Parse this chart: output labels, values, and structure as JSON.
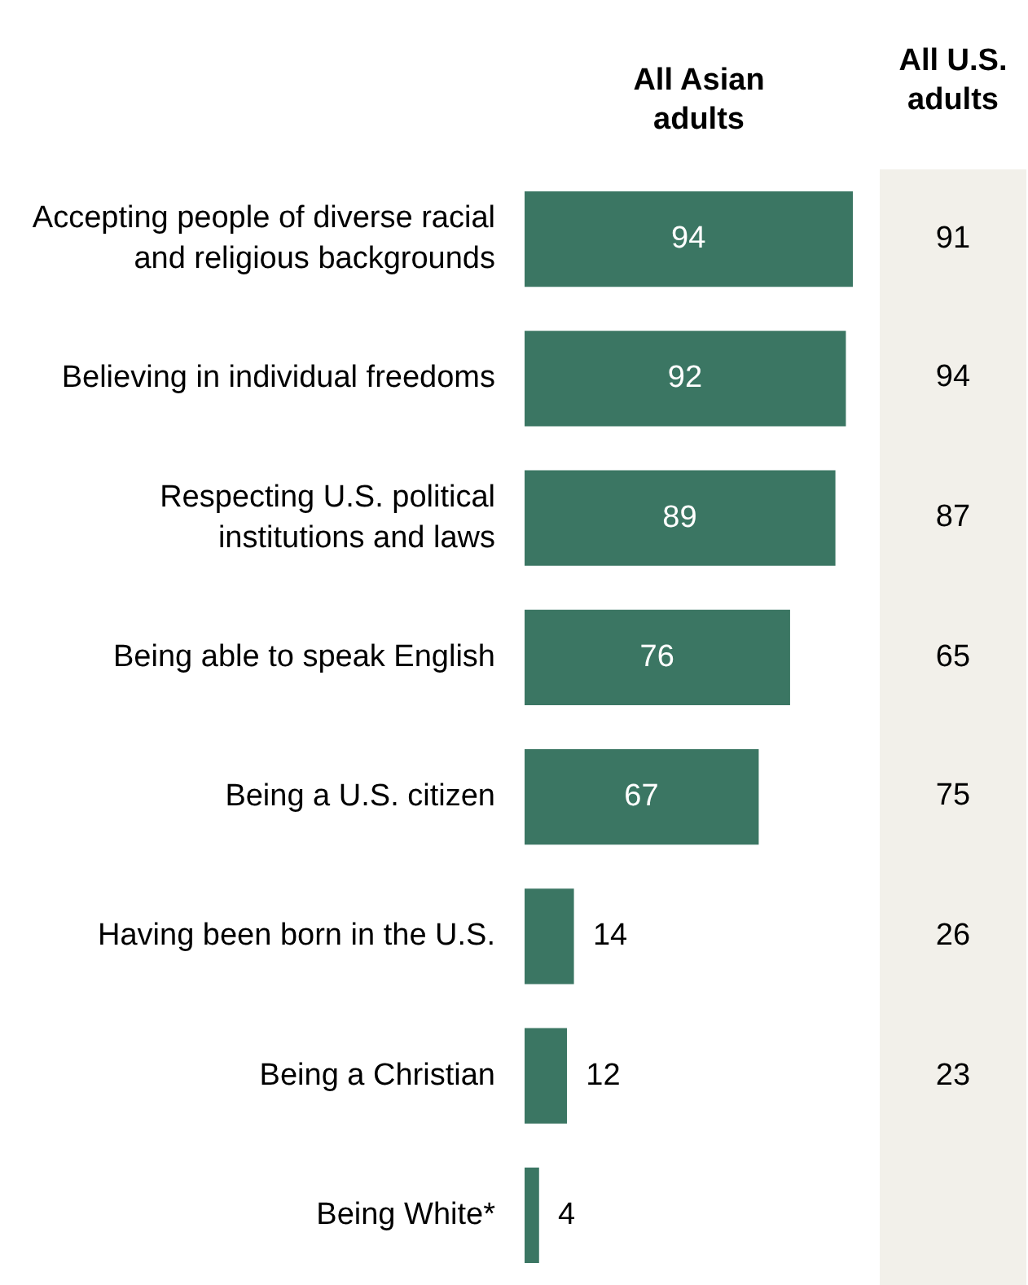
{
  "chart_data": [
    {
      "type": "bar",
      "orientation": "horizontal",
      "data_labels": true,
      "legend": false,
      "tick_labels": "y",
      "categories": [
        "Accepting people of diverse racial and religious backgrounds",
        "Believing in individual freedoms",
        "Respecting U.S. political institutions and laws",
        "Being able to speak English",
        "Being a U.S. citizen",
        "Having been born in the U.S.",
        "Being a Christian",
        "Being White*"
      ],
      "series": [
        {
          "name": "All Asian adults",
          "color": "#3b7663",
          "values": [
            94,
            92,
            89,
            76,
            67,
            14,
            12,
            4
          ]
        }
      ]
    },
    {
      "type": "other",
      "title": "All U.S. adults",
      "data_labels": true,
      "categories": [
        null,
        null,
        null,
        null,
        null,
        null,
        null,
        null
      ],
      "values": [
        91,
        94,
        87,
        65,
        75,
        26,
        23,
        null
      ]
    }
  ]
}
